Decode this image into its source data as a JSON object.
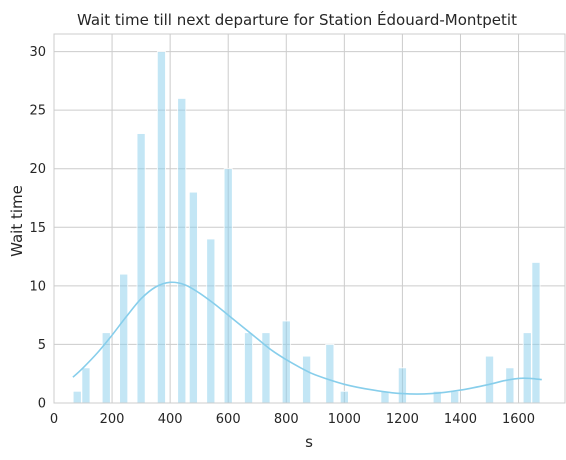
{
  "chart_data": {
    "type": "bar",
    "title": "Wait time till next departure for Station Édouard-Montpetit",
    "xlabel": "s",
    "ylabel": "Wait time",
    "xlim": [
      0,
      1760
    ],
    "ylim": [
      0,
      31.5
    ],
    "xticks": [
      0,
      200,
      400,
      600,
      800,
      1000,
      1200,
      1400,
      1600
    ],
    "yticks": [
      0,
      5,
      10,
      15,
      20,
      25,
      30
    ],
    "grid": true,
    "bar_color": "#87CEEB",
    "kde_color": "#87CEEB",
    "bin_width": 28,
    "series": [
      {
        "kind": "histogram",
        "x": [
          80,
          110,
          180,
          240,
          300,
          370,
          440,
          480,
          540,
          600,
          670,
          730,
          800,
          870,
          950,
          1000,
          1140,
          1200,
          1320,
          1380,
          1500,
          1570,
          1630,
          1660
        ],
        "values": [
          1,
          3,
          6,
          11,
          23,
          30,
          26,
          18,
          14,
          20,
          6,
          6,
          7,
          4,
          5,
          1,
          1,
          3,
          1,
          1,
          4,
          3,
          6,
          12
        ]
      },
      {
        "kind": "kde",
        "x": [
          65,
          100,
          150,
          200,
          250,
          300,
          350,
          400,
          450,
          500,
          550,
          600,
          650,
          700,
          750,
          800,
          850,
          900,
          1000,
          1100,
          1200,
          1300,
          1400,
          1500,
          1550,
          1600,
          1640,
          1680
        ],
        "values": [
          2.2,
          3.0,
          4.3,
          5.8,
          7.4,
          8.9,
          9.9,
          10.3,
          10.1,
          9.4,
          8.5,
          7.5,
          6.5,
          5.5,
          4.5,
          3.7,
          3.0,
          2.4,
          1.6,
          1.1,
          0.8,
          0.8,
          1.1,
          1.6,
          1.9,
          2.1,
          2.1,
          2.0
        ]
      }
    ]
  }
}
